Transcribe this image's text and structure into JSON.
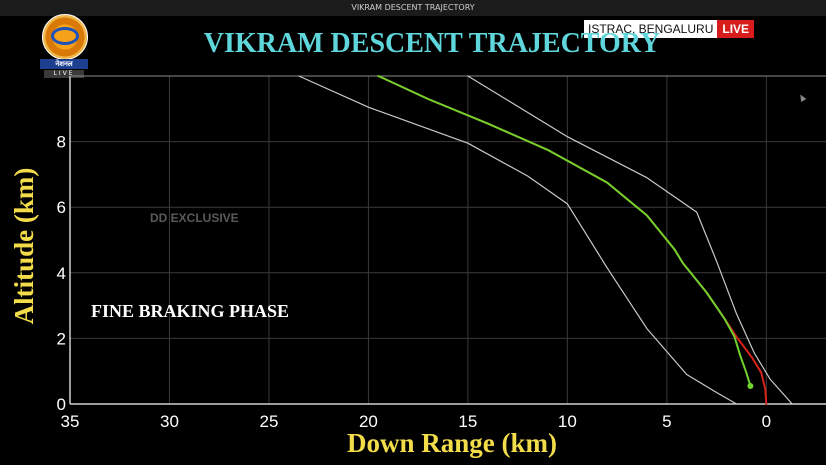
{
  "window": {
    "title": "VIKRAM DESCENT TRAJECTORY"
  },
  "broadcast": {
    "channel_name": "नेशनल",
    "live_tag": "LIVE",
    "location": "ISTRAC, BENGALURU",
    "live_badge": "LIVE",
    "badge_color": "#d81b1b"
  },
  "chart_data": {
    "type": "line",
    "title": "VIKRAM DESCENT TRAJECTORY",
    "xlabel": "Down Range (km)",
    "ylabel": "Altitude (km)",
    "xlim": [
      35,
      -3
    ],
    "ylim": [
      0,
      10
    ],
    "x_ticks": [
      35,
      30,
      25,
      20,
      15,
      10,
      5,
      0
    ],
    "y_ticks": [
      0,
      2,
      4,
      6,
      8
    ],
    "grid": true,
    "annotations": [
      "DD EXCLUSIVE",
      "FINE BRAKING PHASE"
    ],
    "series": [
      {
        "color": "#c9c9c9",
        "x": [
          23.5,
          20,
          15,
          12,
          10,
          8,
          6,
          4,
          2.5,
          1.5
        ],
        "y": [
          10,
          9.05,
          7.95,
          6.95,
          6.1,
          4.15,
          2.3,
          0.9,
          0.35,
          0
        ]
      },
      {
        "color": "#c9c9c9",
        "x": [
          15,
          10,
          6,
          3.5,
          2.5,
          1.5,
          0.6,
          -0.2,
          -1.3
        ],
        "y": [
          10,
          8.15,
          6.9,
          5.85,
          4.35,
          2.75,
          1.55,
          0.75,
          0
        ]
      },
      {
        "color": "#d9221c",
        "x": [
          19.5,
          17,
          14,
          11,
          8,
          6,
          4.6,
          4.2,
          3.6,
          3,
          2.1,
          1.5,
          0.7,
          0.25,
          0.05,
          0
        ],
        "y": [
          10,
          9.3,
          8.55,
          7.75,
          6.75,
          5.75,
          4.7,
          4.3,
          3.85,
          3.4,
          2.6,
          2.05,
          1.4,
          0.95,
          0.45,
          0
        ]
      },
      {
        "color": "#6fd12c",
        "x": [
          19.5,
          17,
          14,
          11,
          8,
          6,
          4.6,
          4.2,
          3.6,
          3,
          2.1,
          1.6,
          1.3,
          1.0,
          0.8
        ],
        "y": [
          10,
          9.3,
          8.55,
          7.75,
          6.75,
          5.75,
          4.7,
          4.3,
          3.85,
          3.4,
          2.6,
          2.05,
          1.45,
          0.95,
          0.55
        ]
      }
    ],
    "marker": {
      "color": "#6fd12c",
      "x": 0.8,
      "y": 0.55
    }
  }
}
